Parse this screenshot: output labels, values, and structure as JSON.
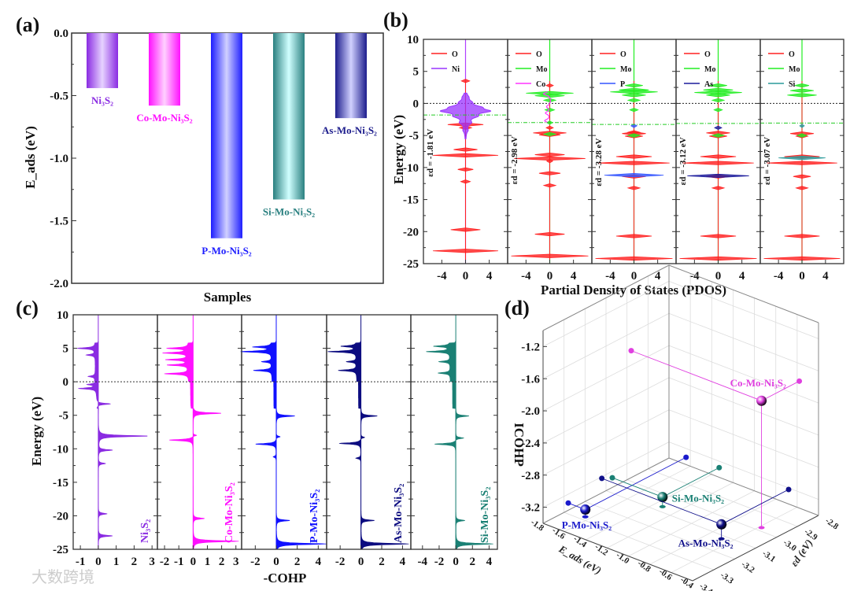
{
  "watermark": "大数跨境",
  "chart_data": [
    {
      "panel": "(a)",
      "type": "bar",
      "xlabel": "Samples",
      "ylabel": "E_ads (eV)",
      "ylim": [
        -2.0,
        0.0
      ],
      "yticks": [
        "0.0",
        "-0.5",
        "-1.0",
        "-1.5",
        "-2.0"
      ],
      "categories": [
        "Ni₃S₂",
        "Co-Mo-Ni₃S₂",
        "P-Mo-Ni₃S₂",
        "Si-Mo-Ni₃S₂",
        "As-Mo-Ni₃S₂"
      ],
      "values": [
        -0.44,
        -0.58,
        -1.64,
        -1.33,
        -0.68
      ],
      "colors": [
        [
          "#8a2be2",
          "#e6d2ff"
        ],
        [
          "#ff10ff",
          "#ffd0ff"
        ],
        [
          "#1e1eff",
          "#d0d0ff"
        ],
        [
          "#2a8080",
          "#d0ffff"
        ],
        [
          "#1c1c8c",
          "#d0d0ff"
        ]
      ]
    },
    {
      "panel": "(b)",
      "type": "line",
      "xlabel": "Partial Density of States (PDOS)",
      "ylabel": "Energy (eV)",
      "ylim": [
        -25,
        10
      ],
      "yticks": [
        "10",
        "5",
        "0",
        "-5",
        "-10",
        "-15",
        "-20",
        "-25"
      ],
      "xticks": [
        "-4",
        "0",
        "4"
      ],
      "xlim": [
        -7.1,
        7.1
      ],
      "subpanels": [
        {
          "ed_label": "εd = -1.81 eV",
          "ed": -1.81,
          "series": [
            {
              "name": "O",
              "color": "#ff2020",
              "peaks": [
                [
                  3.5,
                  0.7
                ],
                [
                  -3.3,
                  3.0
                ],
                [
                  -3.8,
                  1.0
                ],
                [
                  -7.2,
                  2.0
                ],
                [
                  -8.1,
                  5.5
                ],
                [
                  -10.3,
                  1.3
                ],
                [
                  -12.2,
                  0.8
                ],
                [
                  -19.7,
                  2.5
                ],
                [
                  -23.0,
                  5.5
                ]
              ]
            },
            {
              "name": "Ni",
              "color": "#9933ff",
              "fill": true,
              "peaks": [
                [
                  1.0,
                  0.3
                ],
                [
                  0.2,
                  0.6
                ],
                [
                  -0.6,
                  1.8
                ],
                [
                  -1.2,
                  3.5
                ],
                [
                  -2.0,
                  1.4
                ],
                [
                  -3.0,
                  0.7
                ],
                [
                  -4.2,
                  0.3
                ]
              ]
            }
          ]
        },
        {
          "ed_label": "εd = -2.98 eV",
          "ed": -2.98,
          "series": [
            {
              "name": "O",
              "color": "#ff2020",
              "peaks": [
                [
                  2.8,
                  0.6
                ],
                [
                  -3.8,
                  0.6
                ],
                [
                  -4.6,
                  2.8
                ],
                [
                  -4.9,
                  1.8
                ],
                [
                  -8.0,
                  2.5
                ],
                [
                  -8.6,
                  6.0
                ],
                [
                  -9.0,
                  0.5
                ],
                [
                  -10.9,
                  1.8
                ],
                [
                  -12.8,
                  1.0
                ],
                [
                  -20.4,
                  2.5
                ],
                [
                  -23.8,
                  6.5
                ]
              ]
            },
            {
              "name": "Mo",
              "color": "#22ee22",
              "peaks": [
                [
                  1.6,
                  4.0
                ],
                [
                  1.2,
                  2.5
                ],
                [
                  0.5,
                  1.0
                ],
                [
                  -1.0,
                  0.8
                ],
                [
                  -3.0,
                  0.5
                ],
                [
                  -4.8,
                  1.0
                ]
              ]
            },
            {
              "name": "Co",
              "color": "#ff33ff",
              "peaks": [
                [
                  1.5,
                  2.2
                ],
                [
                  -0.5,
                  1.2
                ],
                [
                  -1.5,
                  1.5
                ],
                [
                  -2.7,
                  1.8
                ]
              ]
            }
          ]
        },
        {
          "ed_label": "εd = -3.28 eV",
          "ed": -3.28,
          "series": [
            {
              "name": "O",
              "color": "#ff2020",
              "peaks": [
                [
                  -4.5,
                  1.0
                ],
                [
                  -4.7,
                  2.0
                ],
                [
                  -5.1,
                  1.5
                ],
                [
                  -8.3,
                  3.0
                ],
                [
                  -9.3,
                  6.0
                ],
                [
                  -11.4,
                  2.0
                ],
                [
                  -13.2,
                  1.0
                ],
                [
                  -20.7,
                  3.0
                ],
                [
                  -24.2,
                  6.5
                ]
              ]
            },
            {
              "name": "Mo",
              "color": "#22ee22",
              "peaks": [
                [
                  2.8,
                  1.5
                ],
                [
                  2.1,
                  2.5
                ],
                [
                  1.8,
                  4.0
                ],
                [
                  1.3,
                  2.0
                ],
                [
                  0.5,
                  1.0
                ],
                [
                  -1.0,
                  0.7
                ],
                [
                  -5.0,
                  1.0
                ]
              ]
            },
            {
              "name": "P",
              "color": "#3355ff",
              "peaks": [
                [
                  -3.5,
                  0.5
                ],
                [
                  -11.2,
                  5.0
                ]
              ]
            }
          ]
        },
        {
          "ed_label": "εd = -3.12 eV",
          "ed": -3.12,
          "series": [
            {
              "name": "O",
              "color": "#ff2020",
              "peaks": [
                [
                  -4.6,
                  2.0
                ],
                [
                  -5.1,
                  1.5
                ],
                [
                  -8.3,
                  3.0
                ],
                [
                  -9.3,
                  6.0
                ],
                [
                  -11.4,
                  2.0
                ],
                [
                  -13.2,
                  1.0
                ],
                [
                  -20.7,
                  3.0
                ],
                [
                  -24.2,
                  6.5
                ]
              ]
            },
            {
              "name": "Mo",
              "color": "#22ee22",
              "peaks": [
                [
                  2.8,
                  1.5
                ],
                [
                  2.1,
                  2.5
                ],
                [
                  1.7,
                  4.0
                ],
                [
                  1.3,
                  2.0
                ],
                [
                  0.5,
                  1.0
                ],
                [
                  -1.0,
                  0.7
                ],
                [
                  -5.0,
                  1.0
                ]
              ]
            },
            {
              "name": "As",
              "color": "#1c1c9c",
              "peaks": [
                [
                  -3.8,
                  0.6
                ],
                [
                  -11.3,
                  5.2
                ]
              ]
            }
          ]
        },
        {
          "ed_label": "εd = -3.07 eV",
          "ed": -3.07,
          "series": [
            {
              "name": "O",
              "color": "#ff2020",
              "peaks": [
                [
                  -4.7,
                  2.0
                ],
                [
                  -5.1,
                  1.0
                ],
                [
                  -8.3,
                  3.0
                ],
                [
                  -9.3,
                  6.0
                ],
                [
                  -11.4,
                  1.5
                ],
                [
                  -13.2,
                  1.0
                ],
                [
                  -20.7,
                  3.0
                ],
                [
                  -24.2,
                  6.5
                ]
              ]
            },
            {
              "name": "Mo",
              "color": "#22ee22",
              "peaks": [
                [
                  2.8,
                  1.2
                ],
                [
                  2.0,
                  2.0
                ],
                [
                  1.3,
                  2.5
                ],
                [
                  -5.0,
                  0.8
                ]
              ]
            },
            {
              "name": "Si",
              "color": "#2a9a9a",
              "peaks": [
                [
                  -3.5,
                  0.4
                ],
                [
                  -8.5,
                  4.0
                ]
              ]
            }
          ]
        }
      ]
    },
    {
      "panel": "(c)",
      "type": "area",
      "xlabel": "-COHP",
      "ylabel": "Energy (eV)",
      "ylim": [
        -25,
        10
      ],
      "yticks": [
        "10",
        "5",
        "0",
        "-5",
        "-10",
        "-15",
        "-20",
        "-25"
      ],
      "subpanels": [
        {
          "name": "Ni₃S₂",
          "color": "#8a2be2",
          "xlim": [
            -1.4,
            3.3
          ],
          "xticks": [
            "-1",
            "0",
            "1",
            "2",
            "3"
          ],
          "peaks": [
            [
              5.0,
              -1.0
            ],
            [
              4.0,
              -0.5
            ],
            [
              0.8,
              -0.4
            ],
            [
              -1.0,
              -1.0
            ],
            [
              -0.4,
              -0.5
            ],
            [
              -3.3,
              0.8
            ],
            [
              -8.1,
              2.8
            ],
            [
              -10.2,
              0.8
            ],
            [
              -12.2,
              0.4
            ],
            [
              -19.7,
              0.5
            ],
            [
              -23.0,
              0.8
            ]
          ]
        },
        {
          "name": "Co-Mo-Ni₃S₂",
          "color": "#ff10ff",
          "xlim": [
            -2.5,
            3.4
          ],
          "xticks": [
            "-2",
            "-1",
            "0",
            "1",
            "2",
            "3"
          ],
          "peaks": [
            [
              5.0,
              -1.5
            ],
            [
              4.3,
              -1.8
            ],
            [
              3.3,
              -1.6
            ],
            [
              2.5,
              -1.5
            ],
            [
              1.2,
              -1.7
            ],
            [
              -4.7,
              2.0
            ],
            [
              -8.7,
              -1.7
            ],
            [
              -8.0,
              0.3
            ],
            [
              -20.4,
              0.8
            ],
            [
              -23.8,
              3.2
            ]
          ]
        },
        {
          "name": "P-Mo-Ni₃S₂",
          "color": "#1010ff",
          "xlim": [
            -3.3,
            4.8
          ],
          "xticks": [
            "-2",
            "0",
            "2",
            "4"
          ],
          "peaks": [
            [
              4.5,
              -3.0
            ],
            [
              5.2,
              -1.8
            ],
            [
              3.0,
              -1.0
            ],
            [
              1.7,
              -1.8
            ],
            [
              -5.1,
              1.8
            ],
            [
              -9.3,
              -2.0
            ],
            [
              -8.2,
              0.4
            ],
            [
              -11.2,
              -0.3
            ],
            [
              -20.7,
              1.3
            ],
            [
              -24.2,
              4.8
            ]
          ]
        },
        {
          "name": "As-Mo-Ni₃S₂",
          "color": "#0c0c80",
          "xlim": [
            -3.3,
            4.8
          ],
          "xticks": [
            "-2",
            "0",
            "2",
            "4"
          ],
          "peaks": [
            [
              4.5,
              -2.8
            ],
            [
              5.3,
              -1.5
            ],
            [
              3.0,
              -1.0
            ],
            [
              1.7,
              -1.8
            ],
            [
              -5.1,
              1.6
            ],
            [
              -9.2,
              -2.1
            ],
            [
              -8.3,
              0.4
            ],
            [
              -11.4,
              -0.5
            ],
            [
              -20.7,
              1.3
            ],
            [
              -24.2,
              4.6
            ]
          ]
        },
        {
          "name": "Si-Mo-Ni₃S₂",
          "color": "#1a8074",
          "xlim": [
            -5.4,
            5.0
          ],
          "xticks": [
            "-4",
            "-2",
            "0",
            "2",
            "4"
          ],
          "peaks": [
            [
              4.5,
              -2.9
            ],
            [
              5.3,
              -2.0
            ],
            [
              3.0,
              -1.4
            ],
            [
              1.3,
              -1.5
            ],
            [
              -5.1,
              1.6
            ],
            [
              -9.3,
              -2.6
            ],
            [
              -8.4,
              1.0
            ],
            [
              -20.7,
              1.1
            ],
            [
              -24.2,
              4.5
            ]
          ]
        }
      ]
    },
    {
      "panel": "(d)",
      "type": "scatter",
      "xlabel": "E_ads (eV)",
      "ylabel": "εd (eV)",
      "zlabel": "ICOHP",
      "xlim": [
        -1.8,
        -0.4
      ],
      "ylim": [
        -3.4,
        -2.8
      ],
      "zlim": [
        -3.4,
        -1.0
      ],
      "xticks": [
        "-1.8",
        "-1.6",
        "-1.4",
        "-1.2",
        "-1.0",
        "-0.8",
        "-0.6",
        "-0.4"
      ],
      "yticks": [
        "-3.4",
        "-3.3",
        "-3.2",
        "-3.1",
        "-3.0",
        "-2.9",
        "-2.8"
      ],
      "zticks": [
        "-3.2",
        "-2.8",
        "-2.4",
        "-2.0",
        "-1.6",
        "-1.2"
      ],
      "points": [
        {
          "label": "Co-Mo-Ni₃S₂",
          "color": "#e040e0",
          "eads": -0.58,
          "ed": -2.98,
          "icohp": -1.82
        },
        {
          "label": "P-Mo-Ni₃S₂",
          "color": "#1a1acc",
          "eads": -1.64,
          "ed": -3.28,
          "icohp": -3.31
        },
        {
          "label": "Si-Mo-Ni₃S₂",
          "color": "#1a8074",
          "eads": -1.33,
          "ed": -3.07,
          "icohp": -3.28
        },
        {
          "label": "As-Mo-Ni₃S₂",
          "color": "#10108a",
          "eads": -0.68,
          "ed": -3.12,
          "icohp": -3.22
        }
      ]
    }
  ]
}
